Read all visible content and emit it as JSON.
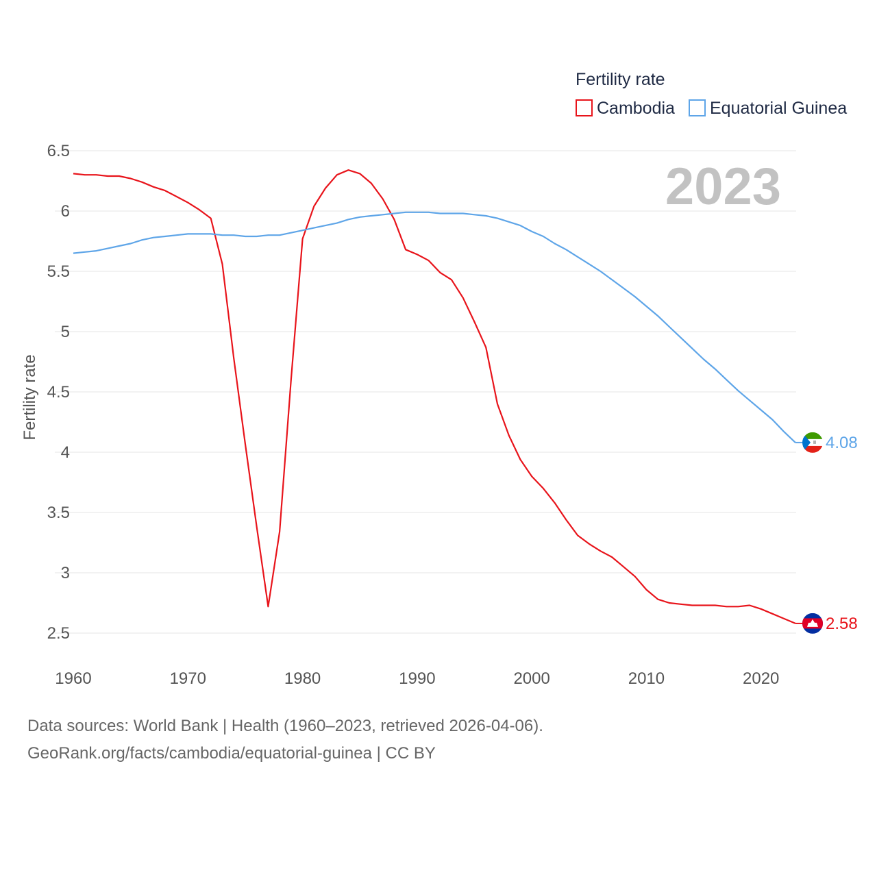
{
  "chart_data": {
    "type": "line",
    "legend_title": "Fertility rate",
    "ylabel": "Fertility rate",
    "xlabel": "",
    "current_year": "2023",
    "xlim": [
      1960,
      2024.5
    ],
    "ylim": [
      2.35,
      6.55
    ],
    "x_ticks": [
      1960,
      1970,
      1980,
      1990,
      2000,
      2010,
      2020
    ],
    "y_ticks": [
      2.5,
      3,
      3.5,
      4,
      4.5,
      5,
      5.5,
      6,
      6.5
    ],
    "y_tick_labels": [
      "2.5",
      "3",
      "3.5",
      "4",
      "4.5",
      "5",
      "5.5",
      "6",
      "6.5"
    ],
    "legend_position": "top-right",
    "x": [
      1960,
      1961,
      1962,
      1963,
      1964,
      1965,
      1966,
      1967,
      1968,
      1969,
      1970,
      1971,
      1972,
      1973,
      1974,
      1975,
      1976,
      1977,
      1978,
      1979,
      1980,
      1981,
      1982,
      1983,
      1984,
      1985,
      1986,
      1987,
      1988,
      1989,
      1990,
      1991,
      1992,
      1993,
      1994,
      1995,
      1996,
      1997,
      1998,
      1999,
      2000,
      2001,
      2002,
      2003,
      2004,
      2005,
      2006,
      2007,
      2008,
      2009,
      2010,
      2011,
      2012,
      2013,
      2014,
      2015,
      2016,
      2017,
      2018,
      2019,
      2020,
      2021,
      2022,
      2023
    ],
    "series": [
      {
        "name": "Cambodia",
        "color": "#e8141b",
        "end_label": "2.58",
        "flag": "cambodia-flag-icon",
        "values": [
          6.31,
          6.3,
          6.3,
          6.29,
          6.29,
          6.27,
          6.24,
          6.2,
          6.17,
          6.12,
          6.07,
          6.01,
          5.94,
          5.56,
          4.78,
          4.07,
          3.38,
          2.72,
          3.34,
          4.6,
          5.77,
          6.04,
          6.19,
          6.3,
          6.34,
          6.31,
          6.23,
          6.1,
          5.93,
          5.68,
          5.64,
          5.59,
          5.49,
          5.43,
          5.28,
          5.08,
          4.87,
          4.4,
          4.14,
          3.94,
          3.8,
          3.7,
          3.58,
          3.44,
          3.31,
          3.24,
          3.18,
          3.13,
          3.05,
          2.97,
          2.86,
          2.78,
          2.75,
          2.74,
          2.73,
          2.73,
          2.73,
          2.72,
          2.72,
          2.73,
          2.7,
          2.66,
          2.62,
          2.58
        ]
      },
      {
        "name": "Equatorial Guinea",
        "color": "#5ea5e8",
        "end_label": "4.08",
        "flag": "equatorial-guinea-flag-icon",
        "values": [
          5.65,
          5.66,
          5.67,
          5.69,
          5.71,
          5.73,
          5.76,
          5.78,
          5.79,
          5.8,
          5.81,
          5.81,
          5.81,
          5.8,
          5.8,
          5.79,
          5.79,
          5.8,
          5.8,
          5.82,
          5.84,
          5.86,
          5.88,
          5.9,
          5.93,
          5.95,
          5.96,
          5.97,
          5.98,
          5.99,
          5.99,
          5.99,
          5.98,
          5.98,
          5.98,
          5.97,
          5.96,
          5.94,
          5.91,
          5.88,
          5.83,
          5.79,
          5.73,
          5.68,
          5.62,
          5.56,
          5.5,
          5.43,
          5.36,
          5.29,
          5.21,
          5.13,
          5.04,
          4.95,
          4.86,
          4.77,
          4.69,
          4.6,
          4.51,
          4.43,
          4.35,
          4.27,
          4.17,
          4.08
        ]
      }
    ]
  },
  "footer": {
    "sources": "Data sources: World Bank | Health (1960–2023, retrieved 2026-04-06).",
    "attribution": "GeoRank.org/facts/cambodia/equatorial-guinea | CC BY"
  }
}
